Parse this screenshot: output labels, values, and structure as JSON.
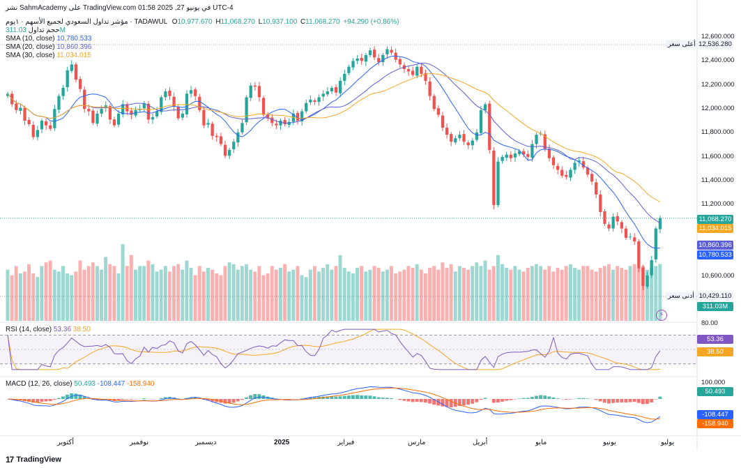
{
  "header": {
    "line1": "نشر SahmAcademy على TradingView.com في يونيو 27, 2025 01:58 UTC-4",
    "symbol": "مؤشر تداول السعودي لجميع الأسهم · ١يوم · TADAWUL",
    "ohlc": {
      "o_label": "O",
      "o": "10,977.670",
      "h_label": "H",
      "h": "11,068.270",
      "l_label": "L",
      "l": "10,937.100",
      "c_label": "C",
      "c": "11,068.270",
      "change": "+94.290 (+0.86%)"
    },
    "volume_label": "حجم تداول",
    "volume_value": "311.03M",
    "sma10_label": "SMA (10, close)",
    "sma10_value": "10,780.533",
    "sma20_label": "SMA (20, close)",
    "sma20_value": "10,860.396",
    "sma30_label": "SMA (30, close)",
    "sma30_value": "11,034.015",
    "rsi_label": "RSI (14, close)",
    "rsi_value": "53.36",
    "rsi_ma_value": "38.50",
    "macd_label": "MACD (12, 26, close)",
    "macd_hist": "50.493",
    "macd_line": "-108.447",
    "macd_signal": "-158.940"
  },
  "price_axis": {
    "ticks": [
      "12,600.000",
      "12,400.000",
      "12,200.000",
      "12,000.000",
      "11,800.000",
      "11,600.000",
      "11,400.000",
      "11,200.000",
      "10,600.000"
    ],
    "high_label": "أعلى سعر",
    "high_value": "12,536.280",
    "low_label": "أدنى سعر",
    "low_value": "10,429.110",
    "tags": {
      "close": "11,068.270",
      "sma30": "11,034.015",
      "sma20": "10,860.396",
      "sma10": "10,780.533",
      "volume": "311.03M"
    }
  },
  "rsi_axis": {
    "top": "80.00",
    "value": "53.36",
    "ma": "38.50"
  },
  "macd_axis": {
    "top": "100.000",
    "hist": "50.493",
    "macd": "-108.447",
    "signal": "-158.940"
  },
  "time_axis": [
    "أكتوبر",
    "نوفمبر",
    "ديسمبر",
    "2025",
    "فبراير",
    "مارس",
    "أبريل",
    "مايو",
    "يونيو",
    "يوليو"
  ],
  "footer": {
    "brand": "TradingView",
    "mark": "17"
  },
  "colors": {
    "up": "#26a69a",
    "down": "#ef5350",
    "sma10": "#2962ff",
    "sma20": "#5b5fd6",
    "sma30": "#f5a623",
    "rsi": "#7e57c2",
    "macd": "#2962ff",
    "signal": "#ff6d00"
  },
  "chart_data": {
    "type": "candlestick",
    "title": "مؤشر تداول السعودي لجميع الأسهم",
    "interval": "1D",
    "y_range": [
      10400,
      12650
    ],
    "ohlc_last": {
      "open": 10977.67,
      "high": 11068.27,
      "low": 10937.1,
      "close": 11068.27,
      "change": 94.29,
      "change_pct": 0.86
    },
    "closes": [
      12130,
      12040,
      11990,
      12010,
      11900,
      11870,
      11760,
      11820,
      11900,
      11860,
      11830,
      12000,
      12110,
      12180,
      12330,
      12380,
      12250,
      12170,
      12000,
      11980,
      11880,
      11960,
      12000,
      12030,
      11910,
      11860,
      11960,
      12040,
      11980,
      11950,
      11990,
      12000,
      12050,
      11910,
      11930,
      11980,
      12100,
      12150,
      12110,
      12020,
      11920,
      11960,
      12130,
      12160,
      12110,
      11990,
      11860,
      11880,
      11770,
      11760,
      11700,
      11600,
      11650,
      11720,
      11800,
      11880,
      12100,
      12200,
      12190,
      12100,
      11950,
      11920,
      11880,
      11860,
      11900,
      11870,
      11890,
      11960,
      11900,
      11980,
      12050,
      12080,
      12060,
      12100,
      12130,
      12150,
      12180,
      12140,
      12240,
      12300,
      12360,
      12410,
      12430,
      12410,
      12460,
      12500,
      12440,
      12400,
      12460,
      12510,
      12480,
      12420,
      12380,
      12340,
      12320,
      12290,
      12360,
      12300,
      12240,
      12110,
      12000,
      11950,
      11840,
      11780,
      11720,
      11750,
      11780,
      11720,
      11690,
      11730,
      11800,
      11990,
      12040,
      11650,
      11180,
      11550,
      11590,
      11610,
      11580,
      11620,
      11640,
      11610,
      11590,
      11700,
      11780,
      11790,
      11660,
      11580,
      11520,
      11480,
      11430,
      11420,
      11480,
      11540,
      11560,
      11500,
      11440,
      11380,
      11270,
      11120,
      11020,
      10980,
      11080,
      11040,
      10980,
      10900,
      10910,
      10870,
      10640,
      10490,
      10580,
      10710,
      10980,
      11068
    ],
    "volumes_millions": [
      280,
      250,
      300,
      260,
      270,
      310,
      260,
      240,
      300,
      320,
      330,
      280,
      270,
      300,
      260,
      250,
      270,
      330,
      280,
      300,
      320,
      300,
      280,
      350,
      310,
      300,
      260,
      420,
      300,
      360,
      280,
      300,
      300,
      330,
      310,
      270,
      280,
      300,
      270,
      300,
      310,
      280,
      330,
      290,
      250,
      300,
      270,
      290,
      280,
      260,
      250,
      300,
      320,
      310,
      280,
      300,
      310,
      280,
      270,
      300,
      250,
      260,
      300,
      280,
      290,
      310,
      270,
      280,
      300,
      250,
      240,
      280,
      300,
      270,
      290,
      310,
      280,
      300,
      360,
      290,
      270,
      260,
      290,
      300,
      270,
      280,
      300,
      290,
      270,
      280,
      300,
      260,
      270,
      280,
      300,
      290,
      310,
      280,
      260,
      290,
      300,
      280,
      320,
      290,
      310,
      270,
      300,
      290,
      280,
      300,
      320,
      300,
      330,
      280,
      300,
      360,
      310,
      290,
      280,
      300,
      280,
      270,
      290,
      300,
      310,
      300,
      280,
      300,
      270,
      290,
      280,
      300,
      310,
      290,
      280,
      300,
      300,
      280,
      270,
      290,
      300,
      310,
      280,
      300,
      290,
      280,
      300,
      310,
      290,
      300,
      280,
      290,
      300,
      311
    ],
    "sma": {
      "sma10_last": 10780.533,
      "sma20_last": 10860.396,
      "sma30_last": 11034.015
    },
    "rsi": {
      "period": 14,
      "last": 53.36,
      "ma_last": 38.5,
      "upper": 70,
      "lower": 30
    },
    "macd": {
      "fast": 12,
      "slow": 26,
      "hist_last": 50.493,
      "macd_last": -108.447,
      "signal_last": -158.94
    },
    "high": 12536.28,
    "low": 10429.11
  }
}
